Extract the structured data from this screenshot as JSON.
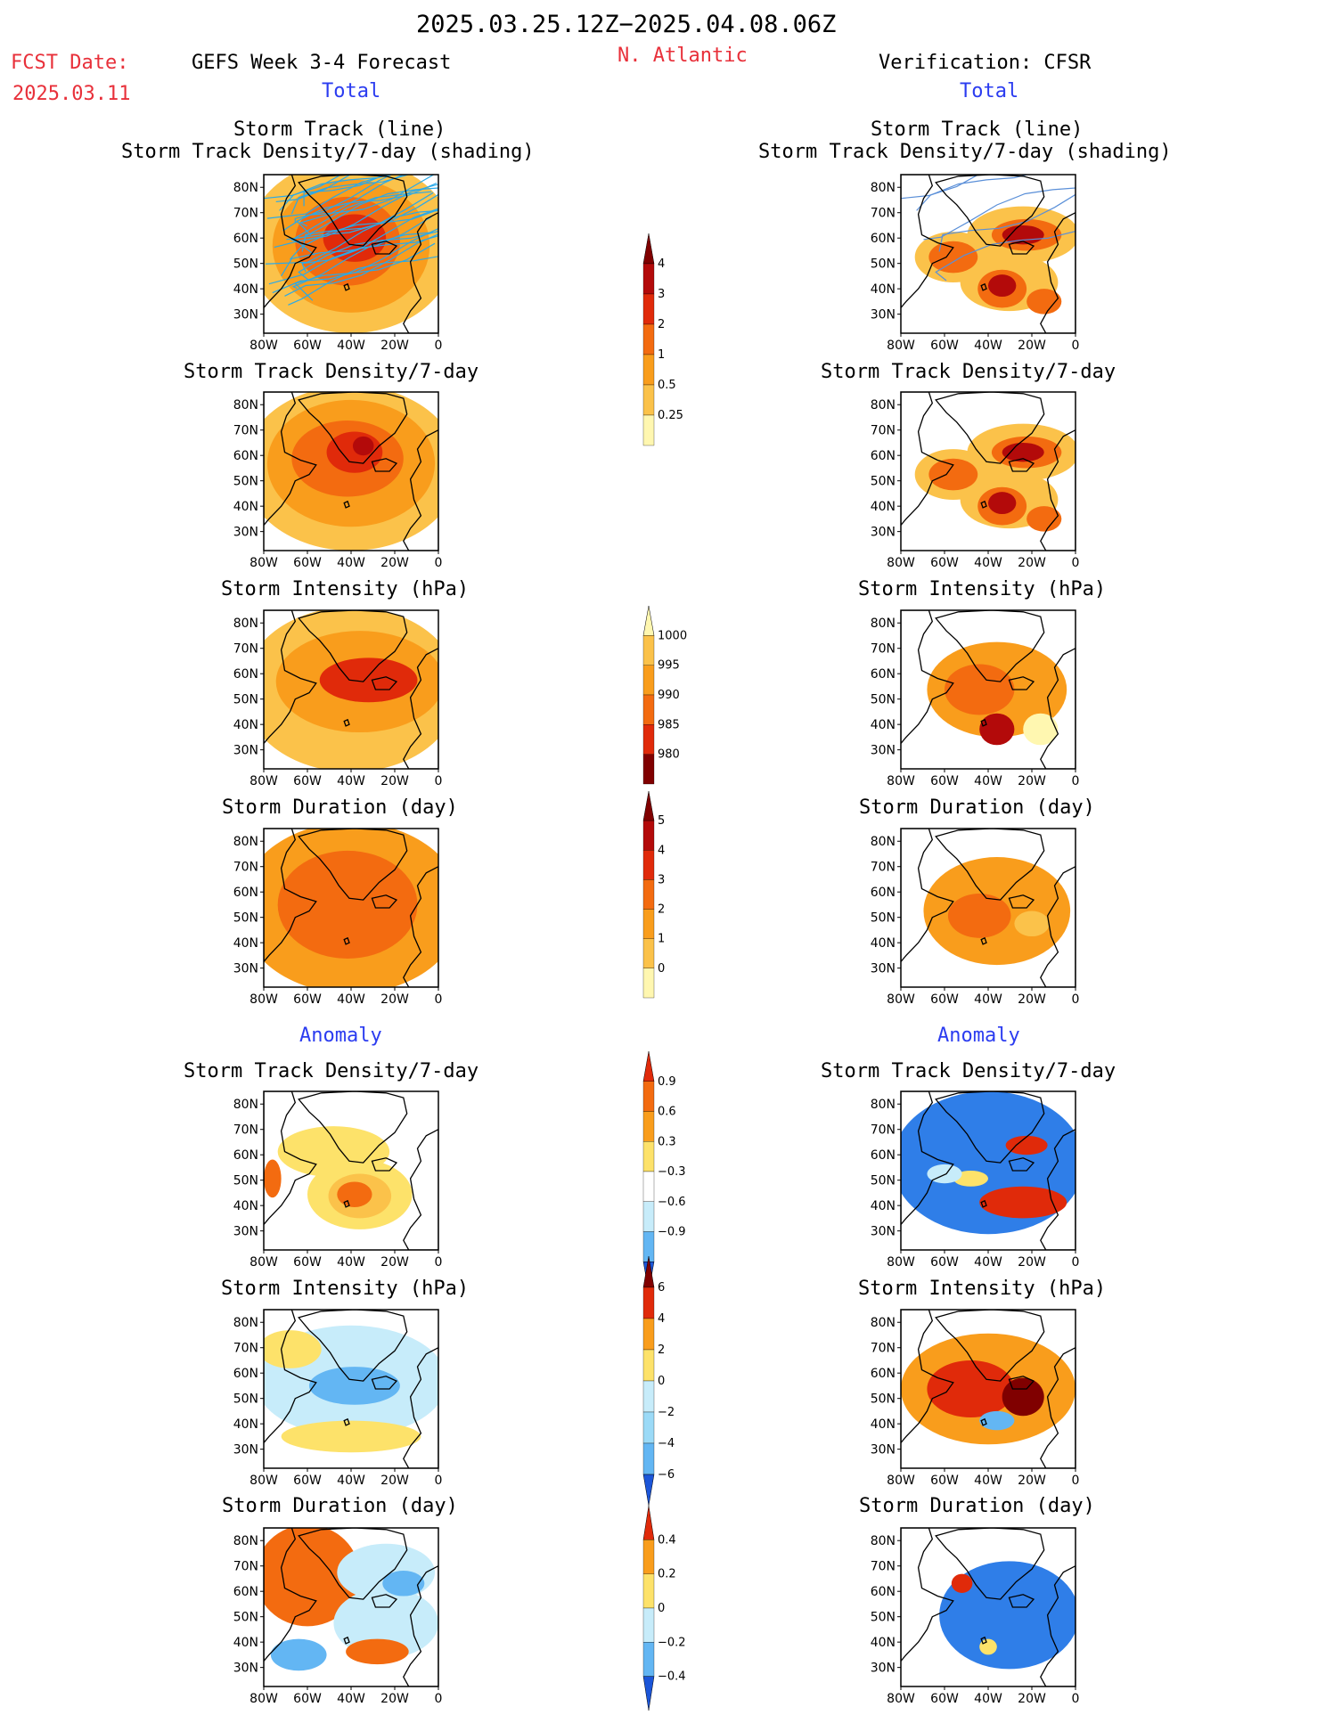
{
  "header": {
    "date_range": "2025.03.25.12Z−2025.04.08.06Z",
    "fcst_label": "FCST Date:",
    "fcst_date": "2025.03.11",
    "left_title": "GEFS Week 3-4 Forecast",
    "region": "N. Atlantic",
    "right_title": "Verification: CFSR"
  },
  "section_labels": {
    "total": "Total",
    "anomaly": "Anomaly"
  },
  "panel_titles": {
    "track_line": "Storm Track (line)",
    "track_shading": "Storm Track Density/7-day (shading)",
    "density": "Storm Track Density/7-day",
    "intensity": "Storm Intensity (hPa)",
    "duration": "Storm Duration (day)"
  },
  "axes": {
    "lat_ticks": [
      "80N",
      "70N",
      "60N",
      "50N",
      "40N",
      "30N"
    ],
    "lon_ticks": [
      "80W",
      "60W",
      "40W",
      "20W",
      "0"
    ]
  },
  "colors": {
    "c1": "#fff7b0",
    "c2": "#fde26a",
    "c3": "#fbc24a",
    "c4": "#f99d1c",
    "c5": "#f36b10",
    "c6": "#e02a0a",
    "c7": "#b30a0a",
    "c8": "#800000",
    "b1": "#c7ecfa",
    "b2": "#9bdaf7",
    "b3": "#63b6f3",
    "b4": "#2f7ee8",
    "b5": "#1b55d8",
    "track_line": "#2aa9e8",
    "track_line_obs": "#5a8fd8"
  },
  "chart_data": [
    {
      "type": "heatmap",
      "panel": "GEFS Total Storm Track Density/7-day with Storm Track (line)",
      "colorbar_levels": [
        0.25,
        0.5,
        1,
        2,
        3,
        4
      ]
    },
    {
      "type": "heatmap",
      "panel": "GEFS Total Storm Track Density/7-day",
      "colorbar_levels": [
        0.25,
        0.5,
        1,
        2,
        3,
        4
      ]
    },
    {
      "type": "heatmap",
      "panel": "GEFS Total Storm Intensity (hPa)",
      "colorbar_levels": [
        1000,
        995,
        990,
        985,
        980
      ]
    },
    {
      "type": "heatmap",
      "panel": "GEFS Total Storm Duration (day)",
      "colorbar_levels": [
        0,
        1,
        2,
        3,
        4,
        5
      ]
    },
    {
      "type": "heatmap",
      "panel": "GEFS Anomaly Storm Track Density/7-day",
      "colorbar_levels": [
        0.9,
        0.6,
        0.3,
        -0.3,
        -0.6,
        -0.9
      ]
    },
    {
      "type": "heatmap",
      "panel": "GEFS Anomaly Storm Intensity (hPa)",
      "colorbar_levels": [
        6,
        4,
        2,
        0,
        -2,
        -4,
        -6
      ]
    },
    {
      "type": "heatmap",
      "panel": "GEFS Anomaly Storm Duration (day)",
      "colorbar_levels": [
        0.4,
        0.2,
        0,
        -0.2,
        -0.4
      ]
    },
    {
      "type": "heatmap",
      "panel": "CFSR Total Storm Track Density/7-day with Storm Track (line)"
    },
    {
      "type": "heatmap",
      "panel": "CFSR Total Storm Track Density/7-day"
    },
    {
      "type": "heatmap",
      "panel": "CFSR Total Storm Intensity (hPa)"
    },
    {
      "type": "heatmap",
      "panel": "CFSR Total Storm Duration (day)"
    },
    {
      "type": "heatmap",
      "panel": "CFSR Anomaly Storm Track Density/7-day"
    },
    {
      "type": "heatmap",
      "panel": "CFSR Anomaly Storm Intensity (hPa)"
    },
    {
      "type": "heatmap",
      "panel": "CFSR Anomaly Storm Duration (day)"
    }
  ],
  "colorbars": [
    {
      "labels": [
        "4",
        "3",
        "2",
        "1",
        "0.5",
        "0.25"
      ],
      "fills": [
        "c8",
        "c7",
        "c6",
        "c5",
        "c4",
        "c3",
        "c1"
      ]
    },
    {
      "labels": [
        "1000",
        "995",
        "990",
        "985",
        "980"
      ],
      "fills": [
        "c1",
        "c3",
        "c4",
        "c5",
        "c6",
        "c8"
      ]
    },
    {
      "labels": [
        "5",
        "4",
        "3",
        "2",
        "1",
        "0"
      ],
      "fills": [
        "c8",
        "c7",
        "c6",
        "c5",
        "c4",
        "c3",
        "c1"
      ]
    },
    {
      "labels": [
        "0.9",
        "0.6",
        "0.3",
        "−0.3",
        "−0.6",
        "−0.9"
      ],
      "fills": [
        "c6",
        "c5",
        "c4",
        "c2",
        "w",
        "b1",
        "b3",
        "b5"
      ]
    },
    {
      "labels": [
        "6",
        "4",
        "2",
        "0",
        "−2",
        "−4",
        "−6"
      ],
      "fills": [
        "c8",
        "c6",
        "c4",
        "c2",
        "b1",
        "b2",
        "b3",
        "b5"
      ]
    },
    {
      "labels": [
        "0.4",
        "0.2",
        "0",
        "−0.2",
        "−0.4"
      ],
      "fills": [
        "c6",
        "c4",
        "c2",
        "b1",
        "b3",
        "b5"
      ]
    }
  ]
}
